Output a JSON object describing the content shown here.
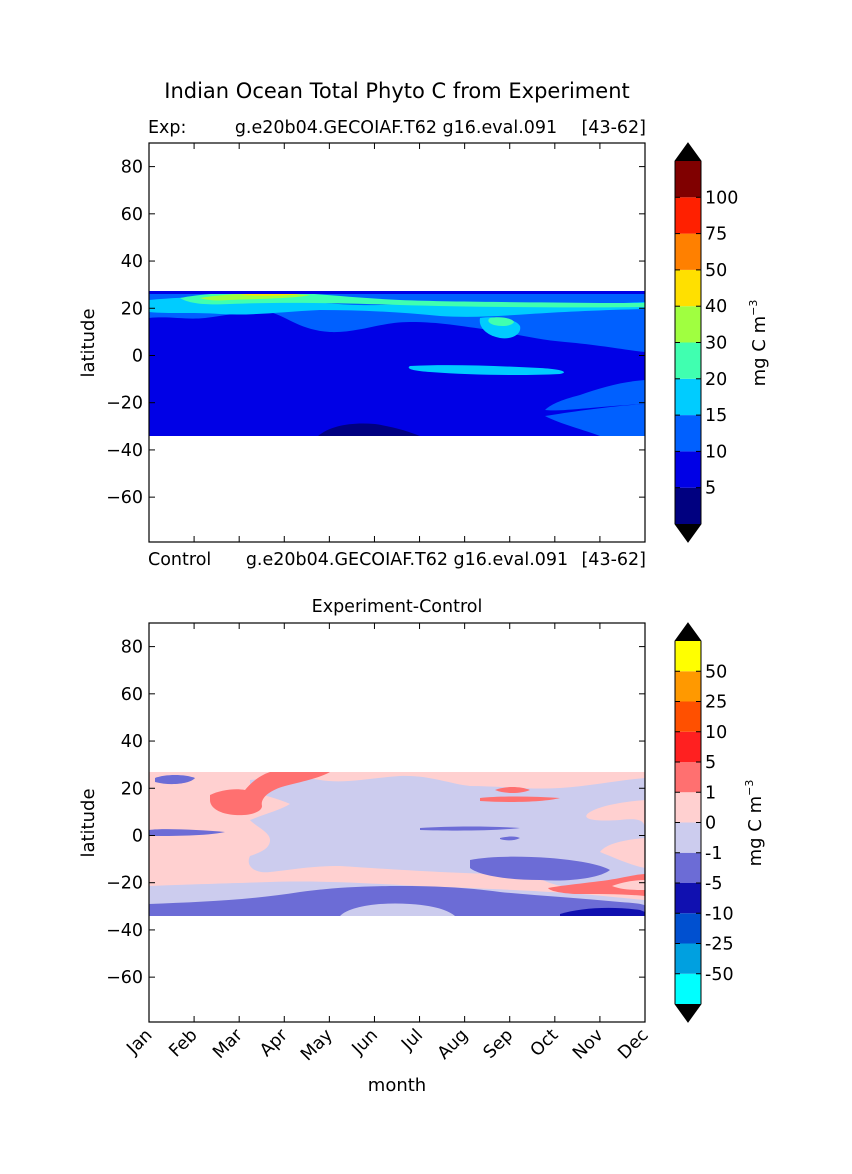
{
  "chart_data": [
    {
      "type": "heatmap",
      "title": "Indian Ocean Total Phyto C from Experiment",
      "subtitle_left": "Exp:",
      "subtitle_center": "g.e20b04.GECOIAF.T62 g16.eval.091",
      "subtitle_right": "[43-62]",
      "xlabel": "",
      "ylabel": "latitude",
      "ylim": [
        -79,
        90
      ],
      "yticks": [
        "80",
        "60",
        "40",
        "20",
        "0",
        "-20",
        "-40",
        "-60"
      ],
      "data_extent_lat": [
        -34,
        27
      ],
      "colorbar": {
        "label": "mg C m",
        "label_exponent": "−3",
        "levels": [
          0,
          5,
          10,
          15,
          20,
          30,
          40,
          50,
          75,
          100
        ],
        "tick_labels": [
          "5",
          "10",
          "15",
          "20",
          "30",
          "40",
          "50",
          "75",
          "100"
        ],
        "colors": [
          "#000080",
          "#0000e6",
          "#0060ff",
          "#00ccff",
          "#40ffb0",
          "#a0ff40",
          "#ffe000",
          "#ff8000",
          "#ff2000",
          "#800000"
        ],
        "extend_color": "#000000"
      },
      "regions": [
        {
          "level": "10-15",
          "color": "#0060ff",
          "month": [
            0,
            12
          ],
          "lat": [
            -34,
            27
          ]
        },
        {
          "level": "5-10",
          "color": "#0000e6",
          "month": [
            0,
            12
          ],
          "lat": [
            -20,
            10
          ]
        },
        {
          "level": "0-5",
          "color": "#000080",
          "month": [
            4.0,
            5.6
          ],
          "lat": [
            -34,
            -30
          ]
        },
        {
          "level": "15-20",
          "color": "#00ccff",
          "month": [
            0,
            12
          ],
          "lat": [
            20,
            23
          ]
        },
        {
          "level": "20-30",
          "color": "#40ffb0",
          "month": [
            1,
            4
          ],
          "lat": [
            23,
            26
          ]
        },
        {
          "level": "30-40",
          "color": "#a0ff40",
          "month": [
            1.5,
            3.5
          ],
          "lat": [
            24,
            26
          ]
        },
        {
          "level": "15-20",
          "color": "#00ccff",
          "month": [
            6.5,
            10
          ],
          "lat": [
            -7,
            -3
          ]
        }
      ]
    },
    {
      "type": "heatmap",
      "title": "Experiment-Control",
      "top_label_left": "Control",
      "top_label_center": "g.e20b04.GECOIAF.T62 g16.eval.091",
      "top_label_right": "[43-62]",
      "xlabel": "month",
      "ylabel": "latitude",
      "ylim": [
        -79,
        90
      ],
      "yticks": [
        "80",
        "60",
        "40",
        "20",
        "0",
        "-20",
        "-40",
        "-60"
      ],
      "xticks": [
        "Jan",
        "Feb",
        "Mar",
        "Apr",
        "May",
        "Jun",
        "Jul",
        "Aug",
        "Sep",
        "Oct",
        "Nov",
        "Dec"
      ],
      "data_extent_lat": [
        -34,
        27
      ],
      "colorbar": {
        "label": "mg C m",
        "label_exponent": "−3",
        "levels": [
          -100,
          -50,
          -25,
          -10,
          -5,
          -1,
          0,
          1,
          5,
          10,
          25,
          50,
          100
        ],
        "tick_labels": [
          "-50",
          "-25",
          "-10",
          "-5",
          "-1",
          "0",
          "1",
          "5",
          "10",
          "25",
          "50"
        ],
        "colors": [
          "#00ffff",
          "#00a0e0",
          "#0050d0",
          "#1010b0",
          "#6c6cd6",
          "#ccccee",
          "#ffd0d0",
          "#ff7070",
          "#ff2020",
          "#ff5000",
          "#ff9900",
          "#ffff00"
        ],
        "extend_color": "#000000"
      },
      "regions": [
        {
          "level": "0 to 1",
          "color": "#ffd0d0",
          "month": [
            0,
            12
          ],
          "lat": [
            -34,
            27
          ]
        },
        {
          "level": "-1 to 0",
          "color": "#ccccee",
          "month": [
            4,
            12
          ],
          "lat": [
            -20,
            10
          ]
        },
        {
          "level": "-1 to 0",
          "color": "#ccccee",
          "month": [
            0,
            12
          ],
          "lat": [
            -34,
            -25
          ]
        },
        {
          "level": "-5 to -1",
          "color": "#6c6cd6",
          "month": [
            0,
            12
          ],
          "lat": [
            -34,
            -28
          ]
        },
        {
          "level": "-5 to -1",
          "color": "#6c6cd6",
          "month": [
            7.5,
            10.5
          ],
          "lat": [
            -20,
            -10
          ]
        },
        {
          "level": "1 to 5",
          "color": "#ff7070",
          "month": [
            1.5,
            4.5
          ],
          "lat": [
            9,
            27
          ]
        },
        {
          "level": "1 to 5",
          "color": "#ff7070",
          "month": [
            9.5,
            12
          ],
          "lat": [
            -26,
            -19
          ]
        }
      ]
    }
  ]
}
